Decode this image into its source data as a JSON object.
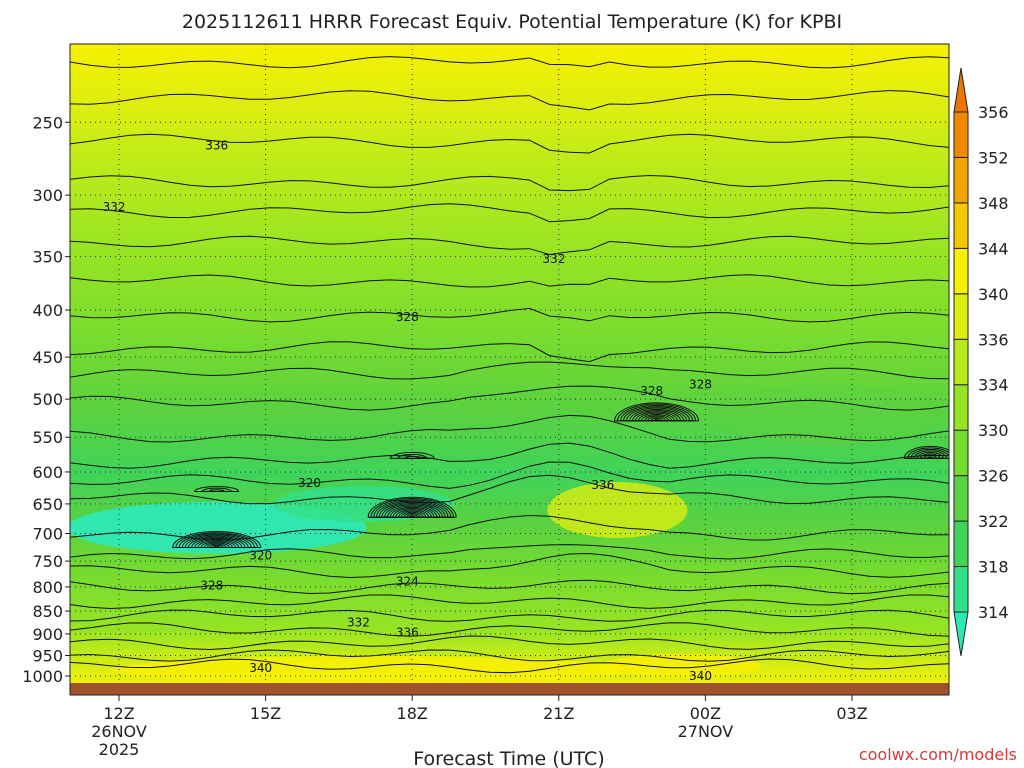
{
  "chart_data": {
    "type": "heatmap",
    "title": "2025112611 HRRR Forecast Equiv. Potential Temperature (K) for KPBI",
    "xlabel": "Forecast Time (UTC)",
    "ylabel": "",
    "credit": "coolwx.com/models",
    "x_ticks": [
      {
        "label": "12Z",
        "sub1": "26NOV",
        "sub2": "2025",
        "hour": 0
      },
      {
        "label": "15Z",
        "sub1": "",
        "sub2": "",
        "hour": 3
      },
      {
        "label": "18Z",
        "sub1": "",
        "sub2": "",
        "hour": 6
      },
      {
        "label": "21Z",
        "sub1": "",
        "sub2": "",
        "hour": 9
      },
      {
        "label": "00Z",
        "sub1": "27NOV",
        "sub2": "",
        "hour": 12
      },
      {
        "label": "03Z",
        "sub1": "",
        "sub2": "",
        "hour": 15
      }
    ],
    "x_range_hours": [
      -1,
      17
    ],
    "y_ticks": [
      250,
      300,
      350,
      400,
      450,
      500,
      550,
      600,
      650,
      700,
      750,
      800,
      850,
      900,
      950,
      1000
    ],
    "y_axis": "pressure (hPa), log scale, inverted",
    "y_range": [
      200,
      1000
    ],
    "grid": "dotted",
    "colorbar": {
      "levels": [
        314,
        318,
        322,
        326,
        330,
        334,
        336,
        340,
        344,
        348,
        352,
        356
      ],
      "colors": [
        "#2ee8b4",
        "#33e08a",
        "#3fd35a",
        "#5bd23f",
        "#78dc2e",
        "#97e424",
        "#b8ea1a",
        "#dcee10",
        "#f7f000",
        "#f6c800",
        "#f3a600",
        "#ef8a00",
        "#ec7600"
      ],
      "extend": "both"
    },
    "contour_labels": [
      {
        "text": "336",
        "hour": 2.0,
        "p": 265
      },
      {
        "text": "332",
        "hour": -0.1,
        "p": 309
      },
      {
        "text": "332",
        "hour": 8.9,
        "p": 352
      },
      {
        "text": "328",
        "hour": 5.9,
        "p": 407
      },
      {
        "text": "328",
        "hour": 10.9,
        "p": 490
      },
      {
        "text": "328",
        "hour": 11.9,
        "p": 482
      },
      {
        "text": "320",
        "hour": 3.9,
        "p": 617
      },
      {
        "text": "336",
        "hour": 9.9,
        "p": 620
      },
      {
        "text": "320",
        "hour": 2.9,
        "p": 740
      },
      {
        "text": "328",
        "hour": 1.9,
        "p": 797
      },
      {
        "text": "324",
        "hour": 5.9,
        "p": 789
      },
      {
        "text": "332",
        "hour": 4.9,
        "p": 875
      },
      {
        "text": "336",
        "hour": 5.9,
        "p": 897
      },
      {
        "text": "340",
        "hour": 2.9,
        "p": 980
      },
      {
        "text": "340",
        "hour": 11.9,
        "p": 1000
      }
    ],
    "ground_color": "#a0522d"
  }
}
